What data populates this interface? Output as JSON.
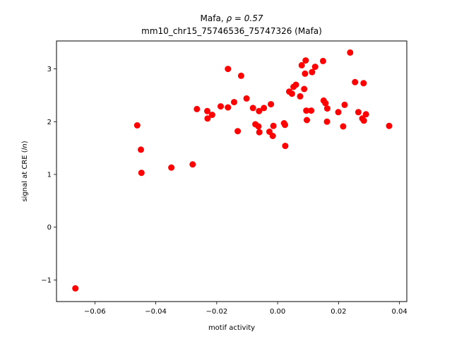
{
  "chart_data": {
    "type": "scatter",
    "title_gene": "Mafa",
    "title_rho": "ρ = 0.57",
    "subtitle": "mm10_chr15_75746536_75747326 (Mafa)",
    "xlabel": "motif activity",
    "ylabel_prefix": "signal at CRE (",
    "ylabel_italic": "ln",
    "ylabel_suffix": ")",
    "xlim": [
      -0.0726,
      0.0424
    ],
    "ylim": [
      -1.41,
      3.53
    ],
    "xticks": [
      -0.06,
      -0.04,
      -0.02,
      0.0,
      0.02,
      0.04
    ],
    "xtick_labels": [
      "−0.06",
      "−0.04",
      "−0.02",
      "0.00",
      "0.02",
      "0.04"
    ],
    "yticks": [
      -1,
      0,
      1,
      2,
      3
    ],
    "ytick_labels": [
      "−1",
      "0",
      "1",
      "2",
      "3"
    ],
    "grid": false,
    "marker_color": "#ff0000",
    "points": [
      {
        "x": -0.0664,
        "y": -1.16
      },
      {
        "x": -0.0461,
        "y": 1.93
      },
      {
        "x": -0.0449,
        "y": 1.47
      },
      {
        "x": -0.0447,
        "y": 1.03
      },
      {
        "x": -0.0349,
        "y": 1.13
      },
      {
        "x": -0.0279,
        "y": 1.19
      },
      {
        "x": -0.0265,
        "y": 2.24
      },
      {
        "x": -0.0231,
        "y": 2.2
      },
      {
        "x": -0.023,
        "y": 2.06
      },
      {
        "x": -0.0215,
        "y": 2.13
      },
      {
        "x": -0.0187,
        "y": 2.29
      },
      {
        "x": -0.0163,
        "y": 3.0
      },
      {
        "x": -0.0163,
        "y": 2.27
      },
      {
        "x": -0.0143,
        "y": 2.37
      },
      {
        "x": -0.0131,
        "y": 1.82
      },
      {
        "x": -0.012,
        "y": 2.87
      },
      {
        "x": -0.0102,
        "y": 2.44
      },
      {
        "x": -0.0081,
        "y": 2.26
      },
      {
        "x": -0.0073,
        "y": 1.95
      },
      {
        "x": -0.0063,
        "y": 1.91
      },
      {
        "x": -0.0061,
        "y": 2.2
      },
      {
        "x": -0.006,
        "y": 1.8
      },
      {
        "x": -0.0045,
        "y": 2.26
      },
      {
        "x": -0.0027,
        "y": 1.81
      },
      {
        "x": -0.0022,
        "y": 2.33
      },
      {
        "x": -0.0016,
        "y": 1.73
      },
      {
        "x": -0.0014,
        "y": 1.92
      },
      {
        "x": 0.0021,
        "y": 1.97
      },
      {
        "x": 0.0024,
        "y": 1.94
      },
      {
        "x": 0.0025,
        "y": 1.54
      },
      {
        "x": 0.0038,
        "y": 2.57
      },
      {
        "x": 0.0047,
        "y": 2.53
      },
      {
        "x": 0.0052,
        "y": 2.66
      },
      {
        "x": 0.006,
        "y": 2.7
      },
      {
        "x": 0.0074,
        "y": 2.48
      },
      {
        "x": 0.0079,
        "y": 3.07
      },
      {
        "x": 0.0087,
        "y": 2.62
      },
      {
        "x": 0.009,
        "y": 2.91
      },
      {
        "x": 0.0092,
        "y": 3.16
      },
      {
        "x": 0.0094,
        "y": 2.21
      },
      {
        "x": 0.0096,
        "y": 2.03
      },
      {
        "x": 0.011,
        "y": 2.21
      },
      {
        "x": 0.0113,
        "y": 2.94
      },
      {
        "x": 0.0123,
        "y": 3.04
      },
      {
        "x": 0.0149,
        "y": 3.15
      },
      {
        "x": 0.0151,
        "y": 2.4
      },
      {
        "x": 0.0157,
        "y": 2.35
      },
      {
        "x": 0.0162,
        "y": 2.0
      },
      {
        "x": 0.0163,
        "y": 2.25
      },
      {
        "x": 0.0199,
        "y": 2.18
      },
      {
        "x": 0.0215,
        "y": 1.91
      },
      {
        "x": 0.022,
        "y": 2.32
      },
      {
        "x": 0.0238,
        "y": 3.31
      },
      {
        "x": 0.0254,
        "y": 2.75
      },
      {
        "x": 0.0265,
        "y": 2.18
      },
      {
        "x": 0.0278,
        "y": 2.06
      },
      {
        "x": 0.0282,
        "y": 2.73
      },
      {
        "x": 0.0283,
        "y": 2.02
      },
      {
        "x": 0.029,
        "y": 2.14
      },
      {
        "x": 0.0366,
        "y": 1.92
      }
    ]
  }
}
